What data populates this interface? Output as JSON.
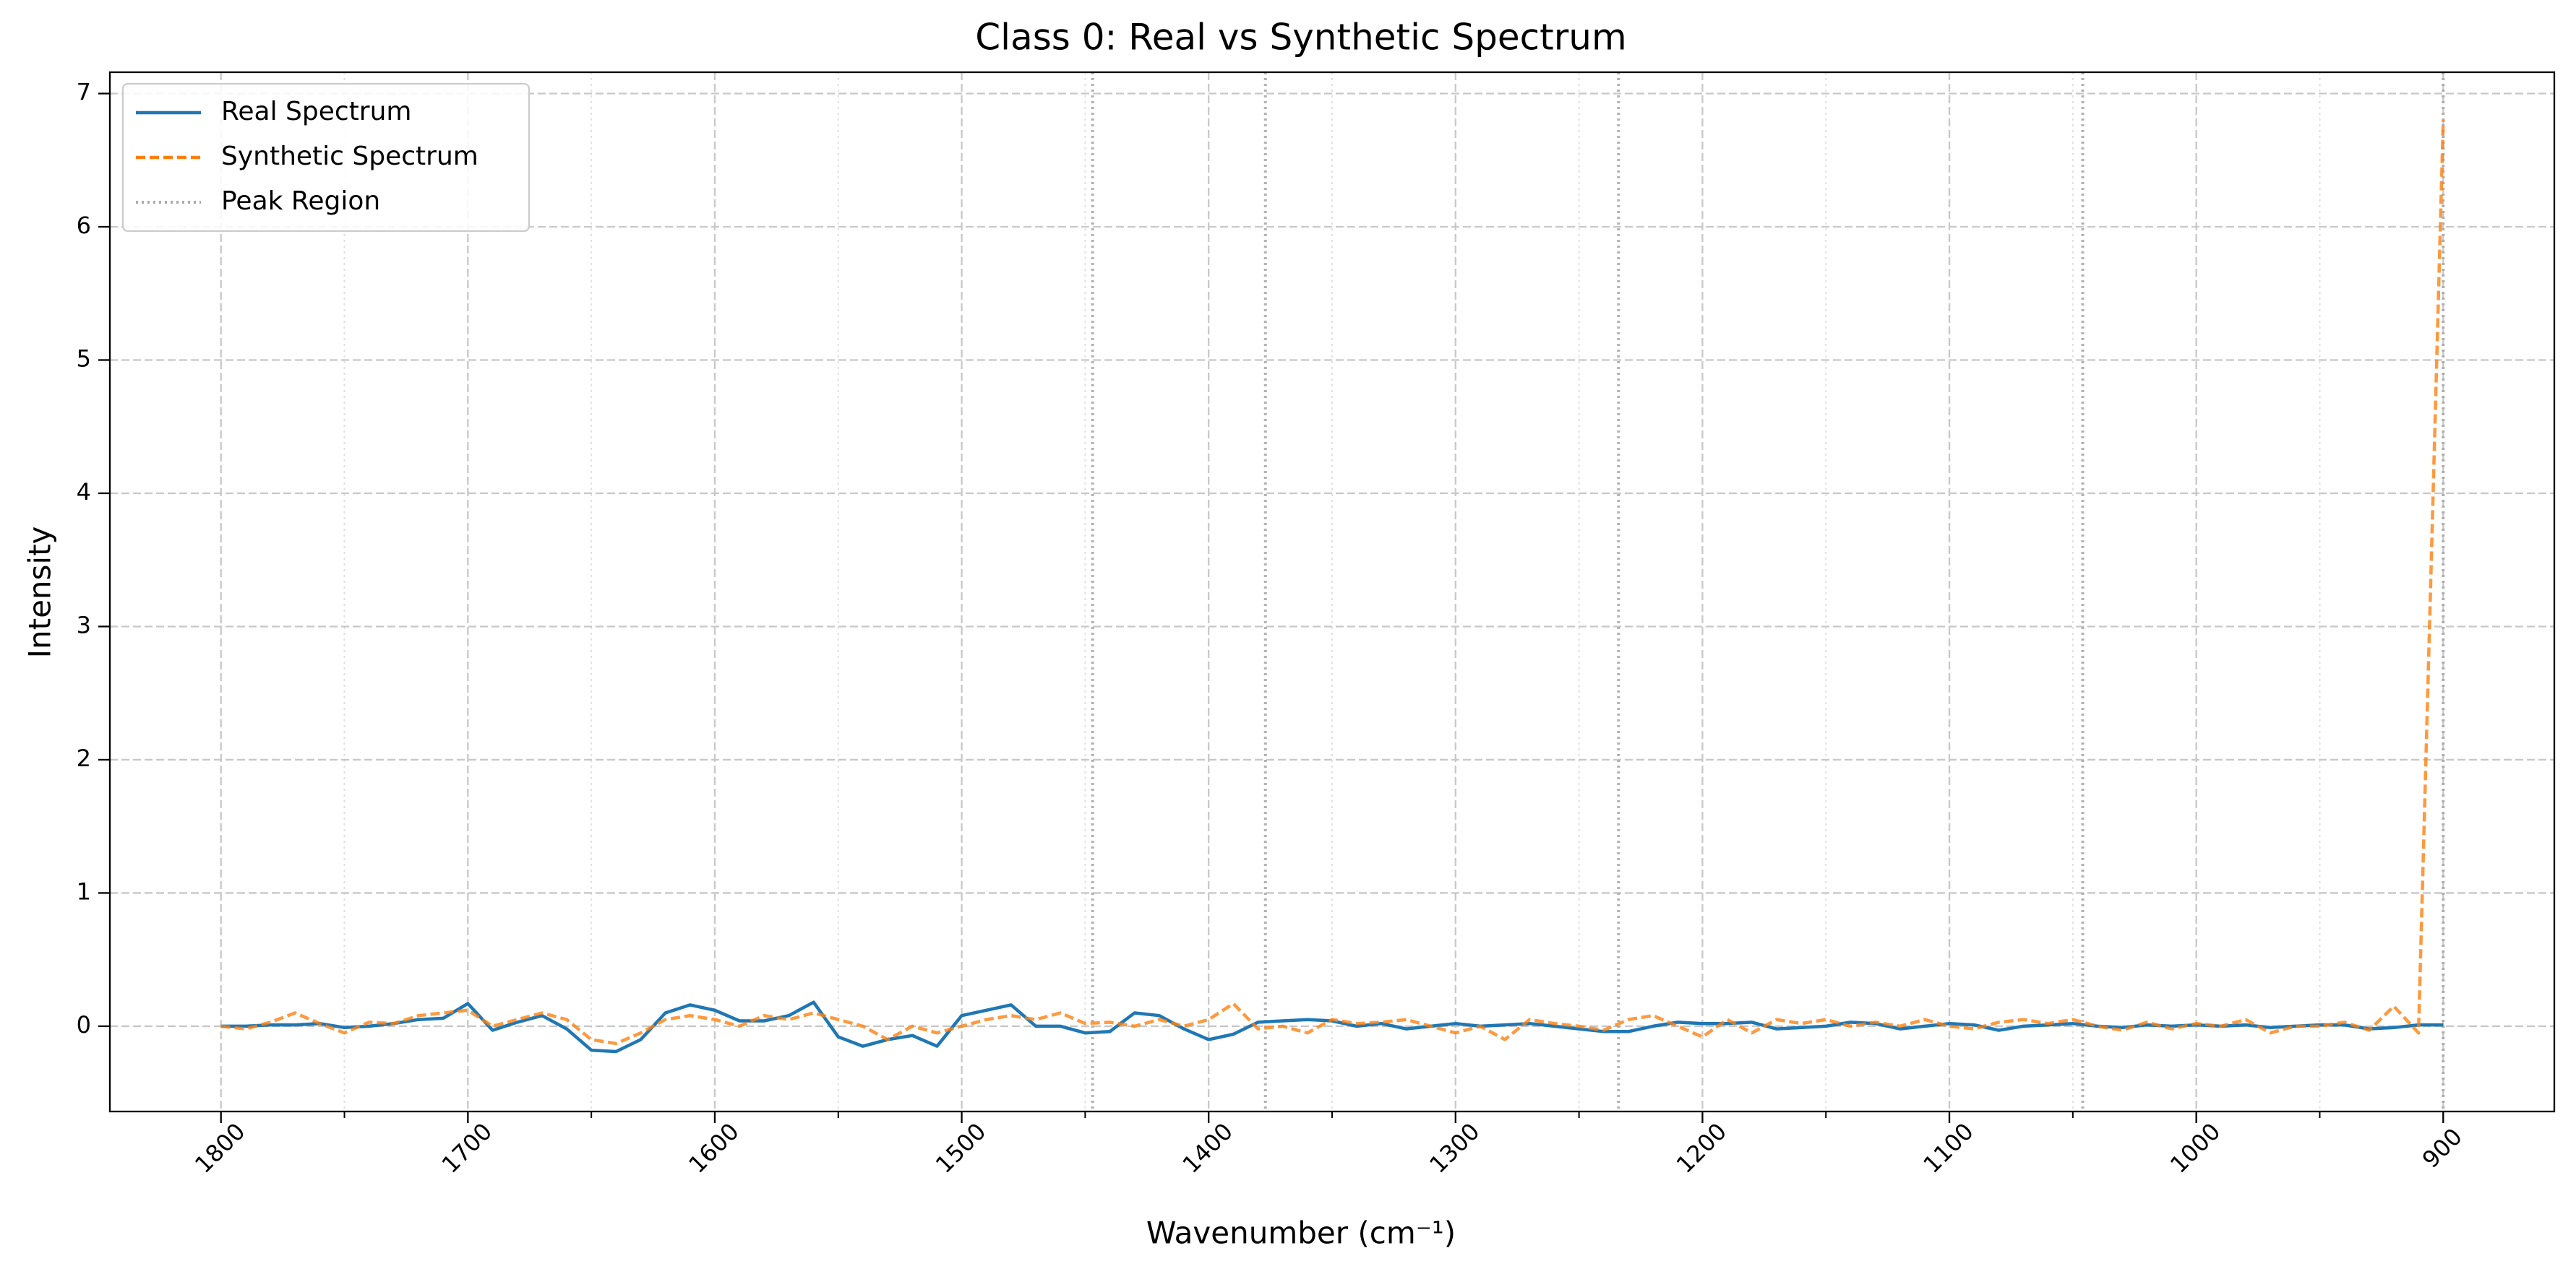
{
  "chart_data": {
    "type": "line",
    "title": "Class 0: Real vs Synthetic Spectrum",
    "x_label": "Wavenumber (cm⁻¹)",
    "y_label": "Intensity",
    "x": [
      1800,
      1790,
      1780,
      1770,
      1760,
      1750,
      1740,
      1730,
      1720,
      1710,
      1700,
      1690,
      1680,
      1670,
      1660,
      1650,
      1640,
      1630,
      1620,
      1610,
      1600,
      1590,
      1580,
      1570,
      1560,
      1550,
      1540,
      1530,
      1520,
      1510,
      1500,
      1490,
      1480,
      1470,
      1460,
      1450,
      1440,
      1430,
      1420,
      1410,
      1400,
      1390,
      1380,
      1370,
      1360,
      1350,
      1340,
      1330,
      1320,
      1310,
      1300,
      1290,
      1280,
      1270,
      1260,
      1250,
      1240,
      1230,
      1220,
      1210,
      1200,
      1190,
      1180,
      1170,
      1160,
      1150,
      1140,
      1130,
      1120,
      1110,
      1100,
      1090,
      1080,
      1070,
      1060,
      1050,
      1040,
      1030,
      1020,
      1010,
      1000,
      990,
      980,
      970,
      960,
      950,
      940,
      930,
      920,
      910,
      900
    ],
    "series": [
      {
        "name": "Real Spectrum",
        "color": "#1f77b4",
        "dash": "solid",
        "values": [
          0,
          0,
          0.01,
          0.01,
          0.02,
          -0.01,
          0,
          0.02,
          0.05,
          0.06,
          0.17,
          -0.03,
          0.03,
          0.08,
          -0.02,
          -0.18,
          -0.19,
          -0.1,
          0.1,
          0.16,
          0.12,
          0.04,
          0.04,
          0.08,
          0.18,
          -0.08,
          -0.15,
          -0.1,
          -0.07,
          -0.15,
          0.08,
          0.12,
          0.16,
          0,
          0,
          -0.05,
          -0.04,
          0.1,
          0.08,
          -0.02,
          -0.1,
          -0.06,
          0.03,
          0.04,
          0.05,
          0.04,
          0,
          0.02,
          -0.02,
          0,
          0.02,
          0,
          0.01,
          0.02,
          0,
          -0.02,
          -0.04,
          -0.04,
          0,
          0.03,
          0.02,
          0.02,
          0.03,
          -0.02,
          -0.01,
          0,
          0.03,
          0.02,
          -0.02,
          0,
          0.02,
          0.01,
          -0.03,
          0,
          0.01,
          0.02,
          0,
          -0.01,
          0.01,
          0,
          0.01,
          0,
          0.01,
          -0.01,
          0,
          0.01,
          0.01,
          -0.02,
          -0.01,
          0.01,
          0.01
        ]
      },
      {
        "name": "Synthetic Spectrum",
        "color": "#ff7f0e",
        "dash": "dashed",
        "values": [
          0.0,
          -0.02,
          0.03,
          0.1,
          0.02,
          -0.05,
          0.03,
          0.02,
          0.08,
          0.1,
          0.12,
          0.0,
          0.05,
          0.1,
          0.05,
          -0.1,
          -0.13,
          -0.05,
          0.05,
          0.08,
          0.05,
          0.0,
          0.08,
          0.05,
          0.1,
          0.05,
          0.0,
          -0.1,
          0.0,
          -0.05,
          0.0,
          0.05,
          0.08,
          0.05,
          0.1,
          0.02,
          0.03,
          0.0,
          0.05,
          0.0,
          0.05,
          0.17,
          -0.02,
          0.0,
          -0.05,
          0.05,
          0.02,
          0.03,
          0.05,
          0.0,
          -0.05,
          0.0,
          -0.1,
          0.05,
          0.02,
          0.0,
          -0.03,
          0.05,
          0.08,
          0.0,
          -0.08,
          0.05,
          -0.05,
          0.05,
          0.02,
          0.05,
          0.0,
          0.03,
          0.0,
          0.05,
          0.0,
          -0.02,
          0.03,
          0.05,
          0.02,
          0.05,
          0.0,
          -0.03,
          0.03,
          -0.02,
          0.02,
          0.0,
          0.05,
          -0.05,
          0.0,
          0.0,
          0.03,
          -0.03,
          0.15,
          -0.05,
          6.8
        ]
      }
    ],
    "peak_regions": {
      "name": "Peak Region",
      "color": "#aaaaaa",
      "x": [
        1447,
        1377,
        1234,
        1046,
        900
      ]
    },
    "xlim": [
      1845,
      855
    ],
    "ylim": [
      -0.64,
      7.16
    ],
    "xticks": [
      1800,
      1700,
      1600,
      1500,
      1400,
      1300,
      1200,
      1100,
      1000,
      900
    ],
    "xminor_ticks": [
      1750,
      1650,
      1550,
      1450,
      1350,
      1250,
      1150,
      1050,
      950
    ],
    "yticks": [
      0,
      1,
      2,
      3,
      4,
      5,
      6,
      7
    ],
    "grid": true,
    "legend": "upper left"
  }
}
